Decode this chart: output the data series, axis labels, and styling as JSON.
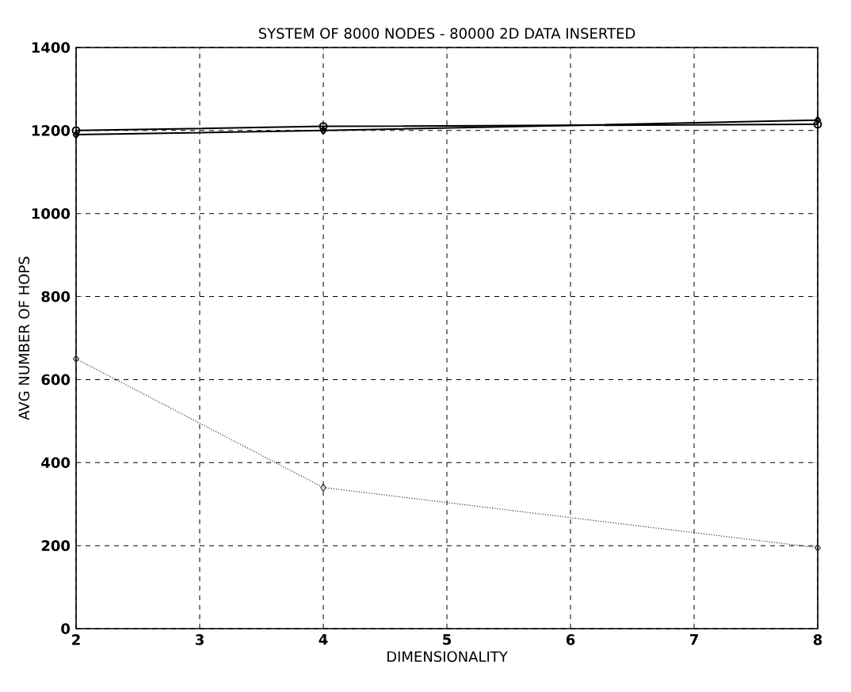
{
  "chart_data": {
    "type": "line",
    "title": "SYSTEM OF 8000 NODES - 80000 2D DATA INSERTED",
    "xlabel": "DIMENSIONALITY",
    "ylabel": "AVG NUMBER OF HOPS",
    "x": [
      2,
      4,
      8
    ],
    "series": [
      {
        "color": "#000000",
        "values": [
          1200,
          1210,
          1215
        ],
        "marker": "circle",
        "line_style": "solid"
      },
      {
        "color": "#000000",
        "values": [
          1190,
          1200,
          1225
        ],
        "marker": "diamond",
        "line_style": "solid"
      },
      {
        "color": "#333333",
        "values": [
          650,
          340,
          195
        ],
        "marker": "diamond",
        "line_style": "dotted"
      }
    ],
    "xlim": [
      2,
      8
    ],
    "ylim": [
      0,
      1400
    ],
    "xticks": [
      2,
      3,
      4,
      5,
      6,
      7,
      8
    ],
    "yticks": [
      0,
      200,
      400,
      600,
      800,
      1000,
      1200,
      1400
    ],
    "grid": true
  }
}
